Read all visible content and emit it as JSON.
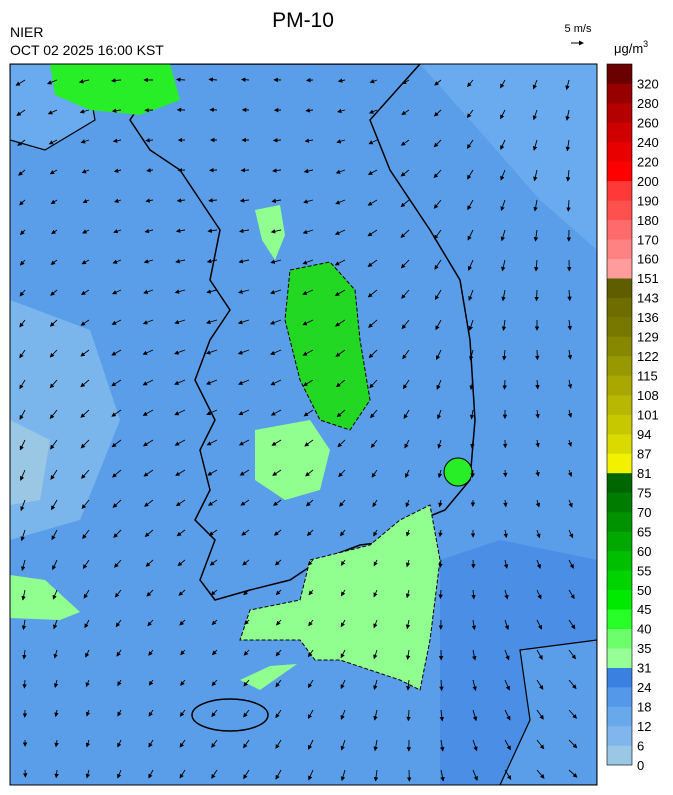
{
  "header": {
    "title": "PM-10",
    "source": "NIER",
    "timestamp": "OCT 02 2025 16:00 KST"
  },
  "wind_scale": {
    "label": "5 m/s"
  },
  "legend": {
    "unit": "μg/m",
    "unit_superscript": "3",
    "labels": [
      "0",
      "6",
      "12",
      "18",
      "24",
      "31",
      "35",
      "40",
      "45",
      "50",
      "55",
      "60",
      "65",
      "70",
      "75",
      "81",
      "87",
      "94",
      "101",
      "108",
      "115",
      "122",
      "129",
      "136",
      "143",
      "151",
      "160",
      "170",
      "180",
      "190",
      "200",
      "220",
      "240",
      "260",
      "280",
      "320"
    ],
    "colors": [
      "#9ac8e4",
      "#80b6ec",
      "#6aa8ec",
      "#5498ea",
      "#3a80e0",
      "#96ff96",
      "#6cff6c",
      "#28ff28",
      "#00ea00",
      "#00d400",
      "#00be00",
      "#00a800",
      "#009200",
      "#007c00",
      "#006600",
      "#f2f200",
      "#dada00",
      "#c8c800",
      "#b8b800",
      "#a8a800",
      "#989800",
      "#888800",
      "#787800",
      "#6e6e00",
      "#5e5e00",
      "#ff9c9c",
      "#ff8282",
      "#ff6a6a",
      "#ff5050",
      "#ff3838",
      "#ff0000",
      "#e80000",
      "#d00000",
      "#b40000",
      "#960000",
      "#6a0000"
    ]
  }
}
